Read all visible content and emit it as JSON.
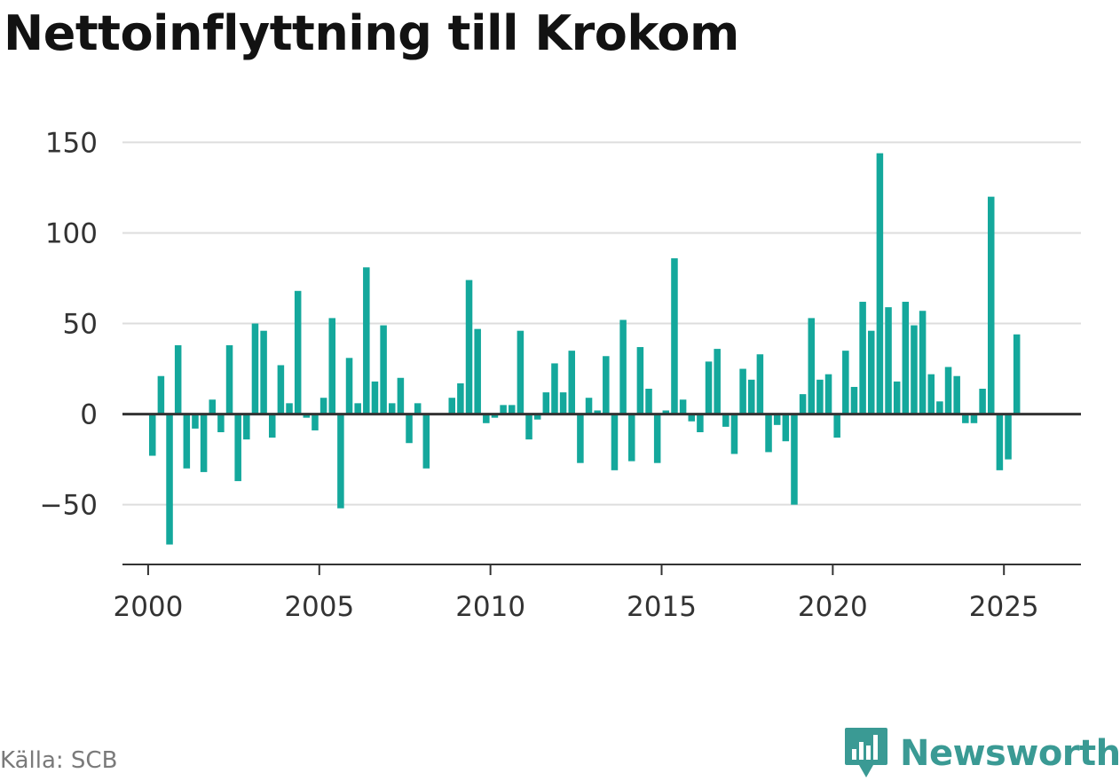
{
  "title": "Nettoinflyttning till Krokom",
  "source": "Källa: SCB",
  "brand": {
    "name": "Newsworthy",
    "logo_icon": "bar-chart-speech-bubble-icon",
    "color": "#3a9a94"
  },
  "colors": {
    "bar": "#14a89c",
    "grid": "#dddddd",
    "axis": "#333333"
  },
  "chart_data": {
    "type": "bar",
    "title": "Nettoinflyttning till Krokom",
    "xlabel": "",
    "ylabel": "",
    "ylim": [
      -83,
      160
    ],
    "xlim": [
      1999.25,
      2027.25
    ],
    "yticks": [
      -50,
      0,
      50,
      100,
      150
    ],
    "ytick_labels": [
      "−50",
      "0",
      "50",
      "100",
      "150"
    ],
    "xticks": [
      2000,
      2005,
      2010,
      2015,
      2020,
      2025
    ],
    "xtick_labels": [
      "2000",
      "2005",
      "2010",
      "2015",
      "2020",
      "2025"
    ],
    "grid": true,
    "frequency": "quarterly",
    "x": [
      "2000 Q1",
      "2000 Q2",
      "2000 Q3",
      "2000 Q4",
      "2001 Q1",
      "2001 Q2",
      "2001 Q3",
      "2001 Q4",
      "2002 Q1",
      "2002 Q2",
      "2002 Q3",
      "2002 Q4",
      "2003 Q1",
      "2003 Q2",
      "2003 Q3",
      "2003 Q4",
      "2004 Q1",
      "2004 Q2",
      "2004 Q3",
      "2004 Q4",
      "2005 Q1",
      "2005 Q2",
      "2005 Q3",
      "2005 Q4",
      "2006 Q1",
      "2006 Q2",
      "2006 Q3",
      "2006 Q4",
      "2007 Q1",
      "2007 Q2",
      "2007 Q3",
      "2007 Q4",
      "2008 Q1",
      "2008 Q2",
      "2008 Q3",
      "2008 Q4",
      "2009 Q1",
      "2009 Q2",
      "2009 Q3",
      "2009 Q4",
      "2010 Q1",
      "2010 Q2",
      "2010 Q3",
      "2010 Q4",
      "2011 Q1",
      "2011 Q2",
      "2011 Q3",
      "2011 Q4",
      "2012 Q1",
      "2012 Q2",
      "2012 Q3",
      "2012 Q4",
      "2013 Q1",
      "2013 Q2",
      "2013 Q3",
      "2013 Q4",
      "2014 Q1",
      "2014 Q2",
      "2014 Q3",
      "2014 Q4",
      "2015 Q1",
      "2015 Q2",
      "2015 Q3",
      "2015 Q4",
      "2016 Q1",
      "2016 Q2",
      "2016 Q3",
      "2016 Q4",
      "2017 Q1",
      "2017 Q2",
      "2017 Q3",
      "2017 Q4",
      "2018 Q1",
      "2018 Q2",
      "2018 Q3",
      "2018 Q4",
      "2019 Q1",
      "2019 Q2",
      "2019 Q3",
      "2019 Q4",
      "2020 Q1",
      "2020 Q2",
      "2020 Q3",
      "2020 Q4",
      "2021 Q1",
      "2021 Q2",
      "2021 Q3",
      "2021 Q4",
      "2022 Q1",
      "2022 Q2",
      "2022 Q3",
      "2022 Q4",
      "2023 Q1",
      "2023 Q2",
      "2023 Q3",
      "2023 Q4",
      "2024 Q1",
      "2024 Q2",
      "2024 Q3",
      "2024 Q4",
      "2025 Q1",
      "2025 Q2",
      "2025 Q3"
    ],
    "values": [
      -23,
      21,
      -72,
      38,
      -30,
      -8,
      -32,
      8,
      -10,
      38,
      -37,
      -14,
      50,
      46,
      -13,
      27,
      6,
      68,
      -2,
      -9,
      9,
      53,
      -52,
      31,
      6,
      81,
      18,
      49,
      6,
      20,
      -16,
      6,
      -30,
      0,
      0,
      9,
      17,
      74,
      47,
      -5,
      -2,
      5,
      5,
      46,
      -14,
      -3,
      12,
      28,
      12,
      35,
      -27,
      9,
      2,
      32,
      -31,
      52,
      -26,
      37,
      14,
      -27,
      2,
      86,
      8,
      -4,
      -10,
      29,
      36,
      -7,
      -22,
      25,
      19,
      33,
      -21,
      -6,
      -15,
      -50,
      11,
      53,
      19,
      22,
      -13,
      35,
      15,
      62,
      46,
      144,
      59,
      18,
      62,
      49,
      57,
      22,
      7,
      26,
      21,
      -5,
      -5,
      14,
      120,
      -31,
      -25,
      44,
      0
    ]
  }
}
